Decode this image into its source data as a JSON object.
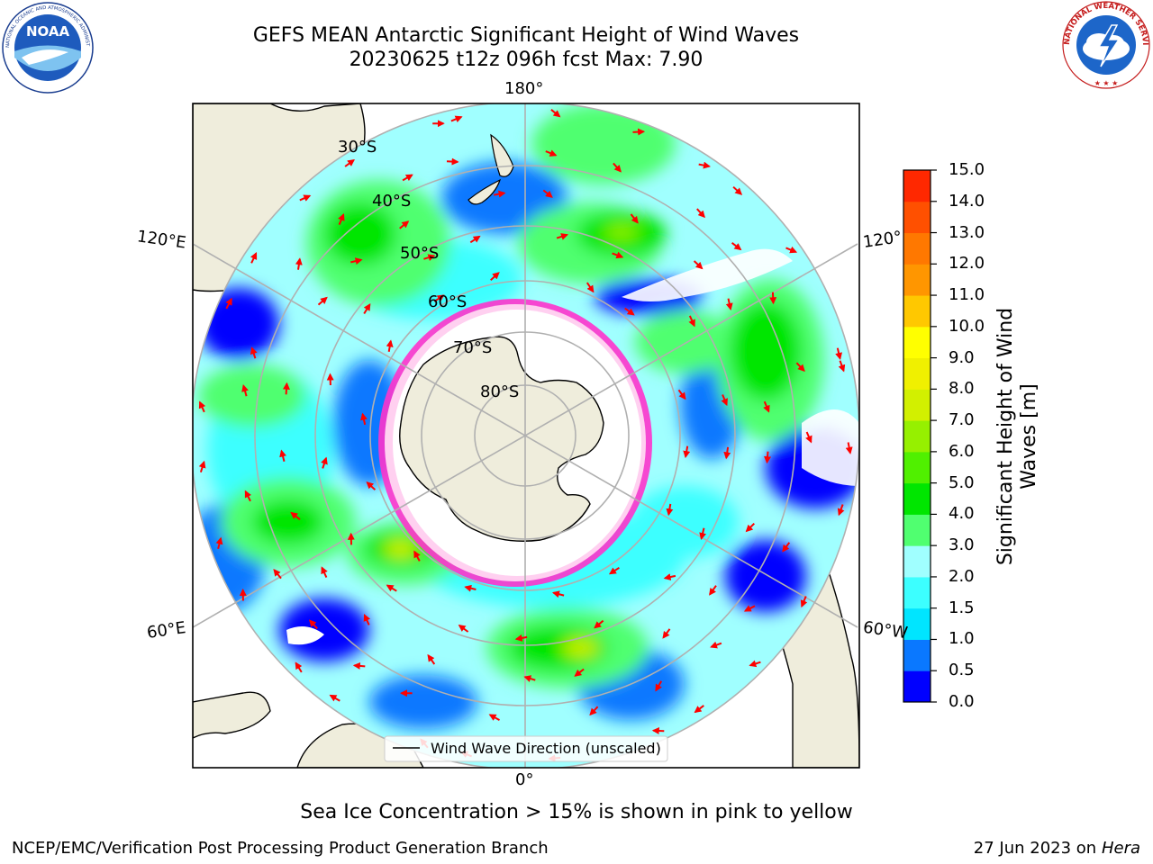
{
  "title": {
    "line1": "GEFS MEAN Antarctic Significant Height of Wind Waves",
    "line2": "20230625 t12z 096h fcst   Max: 7.90"
  },
  "logos": {
    "left": {
      "name": "noaa-logo",
      "text": "NOAA",
      "ring_text": "NATIONAL OCEANIC AND ATMOSPHERIC ADMINISTRATION · U.S. DEPARTMENT OF COMMERCE"
    },
    "right": {
      "name": "nws-logo",
      "ring_text": "NATIONAL WEATHER SERVICE"
    }
  },
  "map": {
    "longitude_labels": {
      "top": "180°",
      "bottom": "0°",
      "left_upper": "120°E",
      "left_lower": "60°E",
      "right_upper": "120°",
      "right_lower": "60°W"
    },
    "latitude_labels": [
      "30°S",
      "40°S",
      "50°S",
      "60°S",
      "70°S",
      "80°S"
    ],
    "legend_label": "Wind Wave Direction (unscaled)"
  },
  "colorbar": {
    "ticks": [
      "15.0",
      "14.0",
      "13.0",
      "12.0",
      "11.0",
      "10.0",
      "9.0",
      "8.0",
      "7.0",
      "6.0",
      "5.0",
      "4.0",
      "3.0",
      "2.0",
      "1.5",
      "1.0",
      "0.5",
      "0.0"
    ],
    "colors": [
      "#0000ff",
      "#0a78ff",
      "#00e5ff",
      "#3cffff",
      "#a0ffff",
      "#50ff70",
      "#00e600",
      "#50f000",
      "#96f000",
      "#d2f000",
      "#f0f000",
      "#ffff00",
      "#ffc800",
      "#ff9600",
      "#ff7800",
      "#ff5000",
      "#ff2800",
      "#ff0000"
    ],
    "label_line1": "Significant Height of Wind",
    "label_line2": "Waves [m]"
  },
  "chart_data": {
    "type": "heatmap",
    "title": "GEFS MEAN Antarctic Significant Height of Wind Waves",
    "subtitle": "20230625 t12z 096h fcst   Max: 7.90",
    "projection": "south polar stereographic",
    "variable": "Significant Height of Wind Waves [m]",
    "color_scale_min": 0.0,
    "color_scale_max": 15.0,
    "max_value": 7.9,
    "colors": {
      "land": "#efeddc",
      "sea_ice": "#ff33cc",
      "ocean_calm": "#0000ff",
      "ocean_low": "#3cffff",
      "ocean_mid": "#50ff70",
      "ocean_high": "#00e600",
      "peak": "#d2f000",
      "arrows": "#ff0000",
      "grid": "#b0b0b0"
    }
  },
  "notes": {
    "sea_ice": "Sea Ice Concentration > 15% is shown in pink to yellow"
  },
  "footer": {
    "left": "NCEP/EMC/Verification Post Processing Product Generation Branch",
    "date": "27 Jun 2023 on",
    "host": "Hera"
  }
}
